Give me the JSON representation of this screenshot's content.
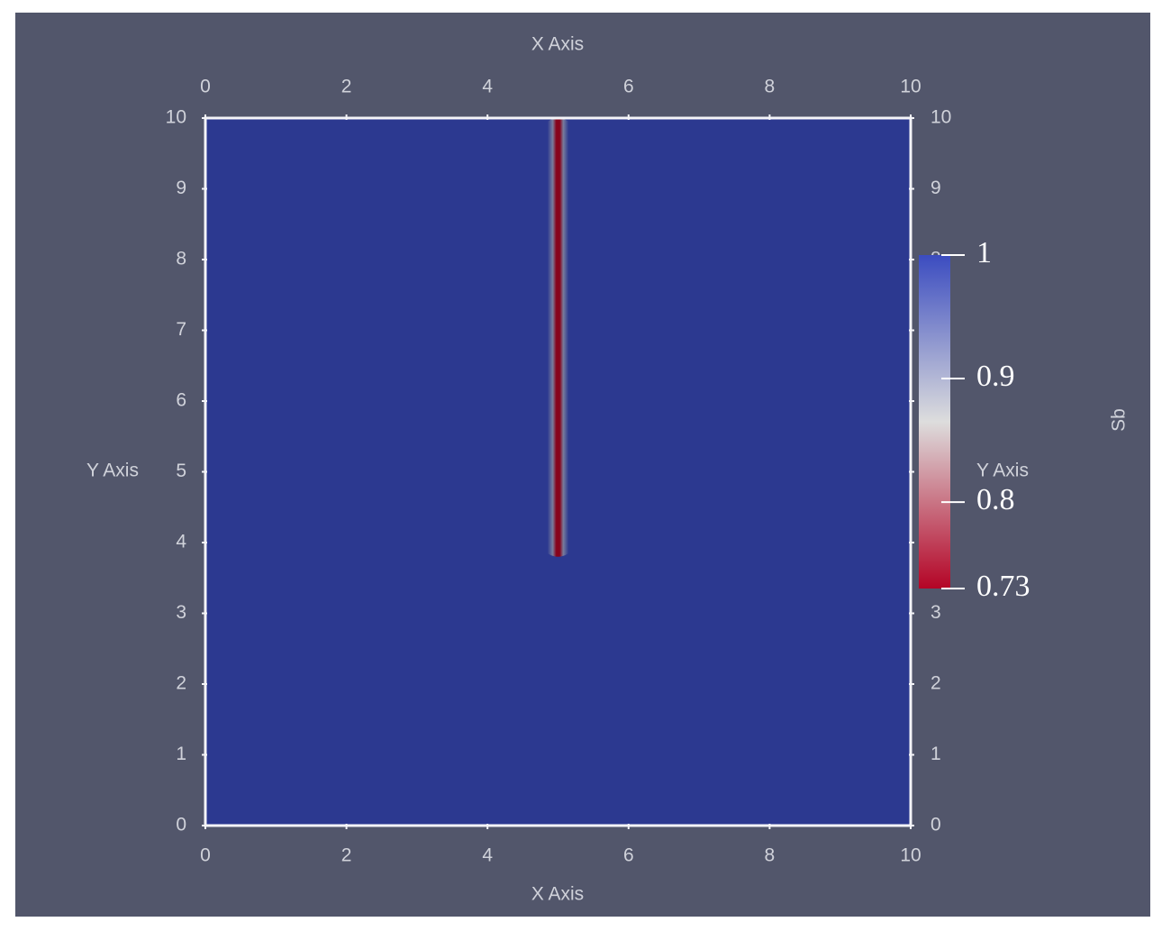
{
  "chart_data": {
    "type": "field",
    "x_label": "X Axis",
    "y_label": "Y Axis",
    "xlim": [
      0,
      10
    ],
    "ylim": [
      0,
      10
    ],
    "xticks": [
      0,
      2,
      4,
      6,
      8,
      10
    ],
    "yticks": [
      0,
      1,
      2,
      3,
      4,
      5,
      6,
      7,
      8,
      9,
      10
    ],
    "background_value": 1,
    "streak": {
      "x": 5,
      "width": 0.5,
      "y": [
        3.8,
        10
      ],
      "min_value": 0.73
    },
    "colorbar": {
      "title": "Sb",
      "lim": [
        0.73,
        1
      ],
      "ticks": [
        1,
        0.9,
        0.8,
        0.73
      ],
      "colors": [
        "#b40426",
        "#dddddd",
        "#3b4cc0"
      ]
    }
  }
}
